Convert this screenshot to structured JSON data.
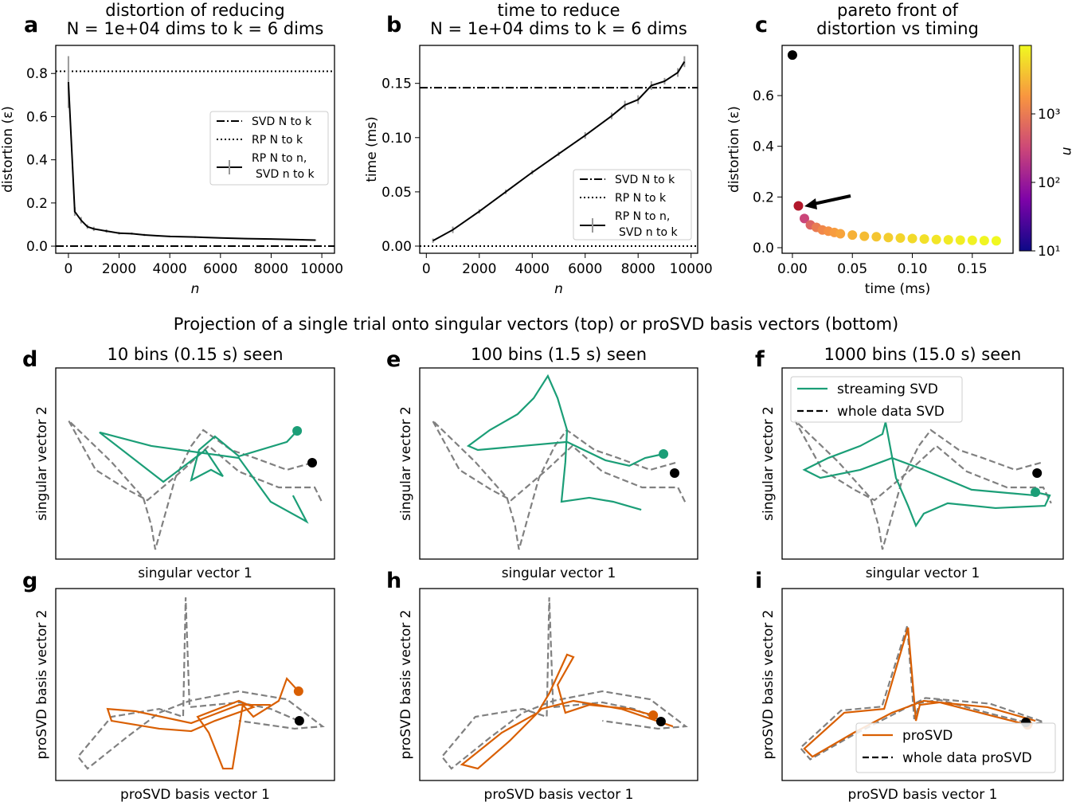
{
  "figure": {
    "letters": {
      "a": "a",
      "b": "b",
      "c": "c",
      "d": "d",
      "e": "e",
      "f": "f",
      "g": "g",
      "h": "h",
      "i": "i"
    },
    "section_title": "Projection of a single trial onto singular vectors (top) or proSVD basis vectors (bottom)",
    "colors": {
      "streaming_svd": "#1b9e77",
      "prosvd": "#d95f02",
      "whole": "#808080",
      "rp_point": "#b2182b"
    }
  },
  "chart_data": [
    {
      "id": "a",
      "type": "line",
      "title": [
        "distortion of reducing",
        "N = 1e+04 dims to k = 6 dims"
      ],
      "xlabel": "n",
      "ylabel": "distortion (ε)",
      "xlim": [
        -500,
        10500
      ],
      "ylim": [
        -0.033,
        0.93
      ],
      "xticks": [
        0,
        2000,
        4000,
        6000,
        8000,
        10000
      ],
      "xtick_labels": [
        "0",
        "2000",
        "4000",
        "6000",
        "8000",
        "10000"
      ],
      "yticks": [
        0,
        0.2,
        0.4,
        0.6,
        0.8
      ],
      "ytick_labels": [
        "0.0",
        "0.2",
        "0.4",
        "0.6",
        "0.8"
      ],
      "hlines": [
        {
          "name": "SVD N to k",
          "y": 0.0,
          "style": "dashdot"
        },
        {
          "name": "RP N to k",
          "y": 0.81,
          "style": "dotted"
        }
      ],
      "series": [
        {
          "name": "RP N to n, SVD n to k",
          "style": "solid",
          "x": [
            0,
            250,
            500,
            750,
            1000,
            1500,
            2000,
            2500,
            3000,
            3500,
            4000,
            5000,
            6000,
            7000,
            8000,
            9000,
            9750
          ],
          "y": [
            0.76,
            0.16,
            0.12,
            0.09,
            0.08,
            0.07,
            0.06,
            0.058,
            0.052,
            0.048,
            0.045,
            0.042,
            0.038,
            0.035,
            0.033,
            0.03,
            0.028
          ],
          "err": [
            0.12,
            0.02,
            0.015,
            0.01,
            0.01,
            0.008,
            0.006,
            0.005,
            0.005,
            0.004,
            0.004,
            0.004,
            0.003,
            0.003,
            0.003,
            0.003,
            0.003
          ]
        }
      ],
      "legend": [
        "SVD N to k",
        "RP N to k",
        "RP N to n,",
        "SVD n to k"
      ]
    },
    {
      "id": "b",
      "type": "line",
      "title": [
        "time to reduce",
        "N = 1e+04 dims to k = 6 dims"
      ],
      "xlabel": "n",
      "ylabel": "time (ms)",
      "xlim": [
        -250,
        10250
      ],
      "ylim": [
        -0.0066,
        0.185
      ],
      "xticks": [
        0,
        2000,
        4000,
        6000,
        8000,
        10000
      ],
      "xtick_labels": [
        "0",
        "2000",
        "4000",
        "6000",
        "8000",
        "10000"
      ],
      "yticks": [
        0,
        0.05,
        0.1,
        0.15
      ],
      "ytick_labels": [
        "0.00",
        "0.05",
        "0.10",
        "0.15"
      ],
      "hlines": [
        {
          "name": "SVD N to k",
          "y": 0.146,
          "style": "dashdot"
        },
        {
          "name": "RP N to k",
          "y": 0.0,
          "style": "dotted"
        }
      ],
      "series": [
        {
          "name": "RP N to n, SVD n to k",
          "style": "solid",
          "x": [
            250,
            1000,
            2000,
            3000,
            4000,
            5000,
            6000,
            7000,
            7500,
            8000,
            8500,
            9000,
            9500,
            9750
          ],
          "y": [
            0.005,
            0.015,
            0.032,
            0.05,
            0.068,
            0.085,
            0.102,
            0.12,
            0.13,
            0.135,
            0.148,
            0.152,
            0.16,
            0.17
          ],
          "err": [
            0.002,
            0.003,
            0.002,
            0.002,
            0.002,
            0.002,
            0.003,
            0.003,
            0.004,
            0.004,
            0.004,
            0.003,
            0.004,
            0.005
          ]
        }
      ],
      "legend": [
        "SVD N to k",
        "RP N to k",
        "RP N to n,",
        "SVD n to k"
      ]
    },
    {
      "id": "c",
      "type": "scatter",
      "title": [
        "pareto front of",
        "distortion vs timing"
      ],
      "xlabel": "time (ms)",
      "ylabel": "distortion (ε)",
      "xlim": [
        -0.0086,
        0.184
      ],
      "ylim": [
        -0.022,
        0.798
      ],
      "xticks": [
        0,
        0.05,
        0.1,
        0.15
      ],
      "xtick_labels": [
        "0.00",
        "0.05",
        "0.10",
        "0.15"
      ],
      "yticks": [
        0,
        0.2,
        0.4,
        0.6
      ],
      "ytick_labels": [
        "0.0",
        "0.2",
        "0.4",
        "0.6"
      ],
      "special_points": [
        {
          "name": "SVD N to k",
          "x": 0.0,
          "y": 0.76,
          "color": "#000000"
        },
        {
          "name": "RP N to k",
          "x": 0.005,
          "y": 0.165,
          "color": "#b2182b"
        }
      ],
      "points": {
        "x": [
          0.01,
          0.015,
          0.02,
          0.025,
          0.03,
          0.035,
          0.04,
          0.05,
          0.06,
          0.07,
          0.08,
          0.09,
          0.1,
          0.11,
          0.12,
          0.13,
          0.14,
          0.15,
          0.16,
          0.17
        ],
        "y": [
          0.115,
          0.09,
          0.08,
          0.07,
          0.065,
          0.06,
          0.055,
          0.05,
          0.045,
          0.043,
          0.04,
          0.038,
          0.036,
          0.034,
          0.032,
          0.031,
          0.03,
          0.029,
          0.028,
          0.027
        ],
        "n": [
          300,
          600,
          1000,
          1300,
          1600,
          2000,
          2300,
          2900,
          3500,
          4100,
          4700,
          5300,
          5900,
          6500,
          7100,
          7700,
          8300,
          8900,
          9400,
          9900
        ]
      },
      "colorbar": {
        "label": "n",
        "scale": "log",
        "range": [
          10,
          10000
        ],
        "ticks": [
          10,
          100,
          1000
        ],
        "tick_labels": [
          "10¹",
          "10²",
          "10³"
        ],
        "cmap": "plasma"
      }
    },
    {
      "id": "d",
      "type": "line",
      "title": "10 bins (0.15 s) seen",
      "xlabel": "singular vector 1",
      "ylabel": "singular vector 2",
      "ref": "svd",
      "stream_name": "streaming SVD",
      "color": "#1b9e77",
      "stream": [
        [
          86.6,
          67.1
        ],
        [
          82.9,
          61.3
        ],
        [
          65.7,
          53.8
        ],
        [
          57.1,
          64.2
        ],
        [
          51.4,
          57.1
        ],
        [
          48.6,
          41.3
        ],
        [
          55.7,
          46.7
        ],
        [
          60,
          43.3
        ],
        [
          53.7,
          57.1
        ],
        [
          38.6,
          40.4
        ],
        [
          15.7,
          66.3
        ],
        [
          34.3,
          59.2
        ],
        [
          65.7,
          52.9
        ],
        [
          77.1,
          30
        ],
        [
          90,
          19.6
        ],
        [
          85.1,
          33.3
        ]
      ],
      "end_point": [
        92,
        50.4
      ]
    },
    {
      "id": "e",
      "type": "line",
      "title": "100 bins (1.5 s) seen",
      "xlabel": "singular vector 1",
      "ylabel": "singular vector 2",
      "ref": "svd",
      "stream_name": "streaming SVD",
      "color": "#1b9e77",
      "stream": [
        [
          87.7,
          55
        ],
        [
          81.1,
          52.9
        ],
        [
          75.4,
          48.8
        ],
        [
          66.8,
          51.7
        ],
        [
          53,
          61.3
        ],
        [
          20.9,
          57.1
        ],
        [
          17.5,
          59.2
        ],
        [
          25.2,
          67.5
        ],
        [
          35.2,
          75.8
        ],
        [
          41,
          84.2
        ],
        [
          46.1,
          95.8
        ],
        [
          49.6,
          84.2
        ],
        [
          53,
          67.5
        ],
        [
          52.4,
          50.8
        ],
        [
          51,
          30
        ],
        [
          61,
          32.1
        ],
        [
          69.6,
          30
        ],
        [
          79.7,
          25.8
        ]
      ],
      "end_point": [
        91.7,
        45
      ]
    },
    {
      "id": "f",
      "type": "line",
      "title": "1000 bins (15.0 s) seen",
      "xlabel": "singular vector 1",
      "ylabel": "singular vector 2",
      "ref": "svd",
      "stream_name": "streaming SVD",
      "color": "#1b9e77",
      "stream": [
        [
          90.1,
          35
        ],
        [
          95.2,
          33.3
        ],
        [
          93.5,
          27.9
        ],
        [
          75.9,
          26.7
        ],
        [
          58.9,
          29.2
        ],
        [
          50.4,
          23.8
        ],
        [
          47.6,
          17.5
        ],
        [
          44.8,
          27.9
        ],
        [
          40.5,
          42.5
        ],
        [
          36.8,
          71.7
        ],
        [
          35.7,
          65.4
        ],
        [
          27.8,
          59.2
        ],
        [
          16.4,
          52.9
        ],
        [
          7.9,
          46.7
        ],
        [
          13.6,
          42.5
        ],
        [
          27.8,
          46.7
        ],
        [
          39.1,
          52.9
        ],
        [
          50.4,
          46.7
        ],
        [
          67.4,
          36.3
        ],
        [
          90.1,
          33.3
        ]
      ],
      "end_point": [
        90.7,
        45
      ],
      "legend": [
        "streaming SVD",
        "whole data SVD"
      ]
    },
    {
      "id": "g",
      "type": "line",
      "title": "",
      "xlabel": "proSVD basis vector 1",
      "ylabel": "proSVD basis vector 2",
      "ref": "prosvd",
      "stream_name": "proSVD",
      "color": "#d95f02",
      "stream": [
        [
          87.1,
          46.5
        ],
        [
          82.9,
          53.1
        ],
        [
          80,
          41.5
        ],
        [
          70.9,
          33.2
        ],
        [
          67.1,
          39.4
        ],
        [
          63.4,
          6.2
        ],
        [
          60,
          6.2
        ],
        [
          54.9,
          24.9
        ],
        [
          50.9,
          33.2
        ],
        [
          65.7,
          41.5
        ],
        [
          70.9,
          38.2
        ],
        [
          57.1,
          31.1
        ],
        [
          48.6,
          25.7
        ],
        [
          37.1,
          27
        ],
        [
          20,
          31.1
        ],
        [
          18.6,
          37.3
        ],
        [
          28.6,
          36.1
        ],
        [
          48.6,
          29.9
        ],
        [
          65.7,
          39.4
        ],
        [
          77.1,
          39.4
        ]
      ],
      "end_point": [
        87.4,
        31.1
      ]
    },
    {
      "id": "h",
      "type": "line",
      "title": "",
      "xlabel": "proSVD basis vector 1",
      "ylabel": "proSVD basis vector 2",
      "ref": "prosvd",
      "stream_name": "proSVD",
      "color": "#d95f02",
      "stream": [
        [
          84,
          34
        ],
        [
          75.4,
          37.3
        ],
        [
          61,
          39.4
        ],
        [
          52.4,
          35.3
        ],
        [
          49.6,
          49.8
        ],
        [
          55.3,
          64.3
        ],
        [
          53,
          65.6
        ],
        [
          46.7,
          45.6
        ],
        [
          42.4,
          35.3
        ],
        [
          29.5,
          24.9
        ],
        [
          15.2,
          8.3
        ],
        [
          20.9,
          6.2
        ],
        [
          32.4,
          20.7
        ],
        [
          43.8,
          37.3
        ],
        [
          55.3,
          41.5
        ],
        [
          72.5,
          37.3
        ],
        [
          91.1,
          28.2
        ]
      ],
      "end_point": [
        86.8,
        30.7
      ]
    },
    {
      "id": "i",
      "type": "line",
      "title": "",
      "xlabel": "proSVD basis vector 1",
      "ylabel": "proSVD basis vector 2",
      "ref": "prosvd_full",
      "stream_name": "proSVD",
      "color": "#d95f02",
      "stream": [
        [
          87.3,
          29
        ],
        [
          75.9,
          33.2
        ],
        [
          56.1,
          40.7
        ],
        [
          49,
          39.4
        ],
        [
          47.6,
          31.1
        ],
        [
          44.8,
          79.7
        ],
        [
          36.3,
          37.3
        ],
        [
          22.1,
          35.3
        ],
        [
          7.9,
          16.6
        ],
        [
          10.8,
          12.4
        ],
        [
          25.5,
          24.9
        ],
        [
          39.1,
          35.3
        ],
        [
          50.4,
          41.5
        ],
        [
          73.1,
          38.2
        ],
        [
          90.1,
          31.1
        ]
      ],
      "end_point": [
        86.7,
        30.3
      ],
      "legend": [
        "proSVD",
        "whole data proSVD"
      ]
    }
  ],
  "reference_series": {
    "svd": [
      [
        92,
        50.4
      ],
      [
        82.9,
        46.7
      ],
      [
        71.4,
        52.9
      ],
      [
        62.9,
        57.1
      ],
      [
        52.9,
        67.5
      ],
      [
        48.6,
        59.2
      ],
      [
        42.9,
        42.5
      ],
      [
        35.7,
        5
      ],
      [
        34.3,
        17.5
      ],
      [
        31.4,
        32.1
      ],
      [
        20,
        50.8
      ],
      [
        4.6,
        72.5
      ],
      [
        14.3,
        46.7
      ],
      [
        25.7,
        36.3
      ],
      [
        32.9,
        30.8
      ],
      [
        45.7,
        46.7
      ],
      [
        54.9,
        59.2
      ],
      [
        65.7,
        45.8
      ],
      [
        80,
        37.5
      ],
      [
        92.9,
        37.5
      ],
      [
        95.7,
        29.2
      ]
    ],
    "prosvd": [
      [
        87.1,
        31.1
      ],
      [
        77.1,
        37.3
      ],
      [
        65.7,
        40.7
      ],
      [
        48,
        38.2
      ],
      [
        46.6,
        95.4
      ],
      [
        45.7,
        33.2
      ],
      [
        37.1,
        37.3
      ],
      [
        20,
        33.2
      ],
      [
        8,
        12.4
      ],
      [
        11.4,
        6.2
      ],
      [
        25.7,
        22.8
      ],
      [
        37.1,
        35.3
      ],
      [
        48,
        41.5
      ],
      [
        65.7,
        46.5
      ],
      [
        82.9,
        42.3
      ],
      [
        95.7,
        28.2
      ],
      [
        85.7,
        27
      ],
      [
        65.7,
        31.1
      ]
    ],
    "prosvd_full": [
      [
        86.7,
        30.3
      ],
      [
        75,
        34.5
      ],
      [
        56,
        42
      ],
      [
        49,
        40.5
      ],
      [
        47,
        32
      ],
      [
        44.5,
        80.5
      ],
      [
        35.5,
        38.5
      ],
      [
        21,
        36.5
      ],
      [
        6.5,
        17
      ],
      [
        10,
        11
      ],
      [
        25,
        23.5
      ],
      [
        39,
        34
      ],
      [
        51,
        43
      ],
      [
        74,
        40
      ],
      [
        93,
        30.5
      ],
      [
        88,
        29
      ]
    ]
  }
}
